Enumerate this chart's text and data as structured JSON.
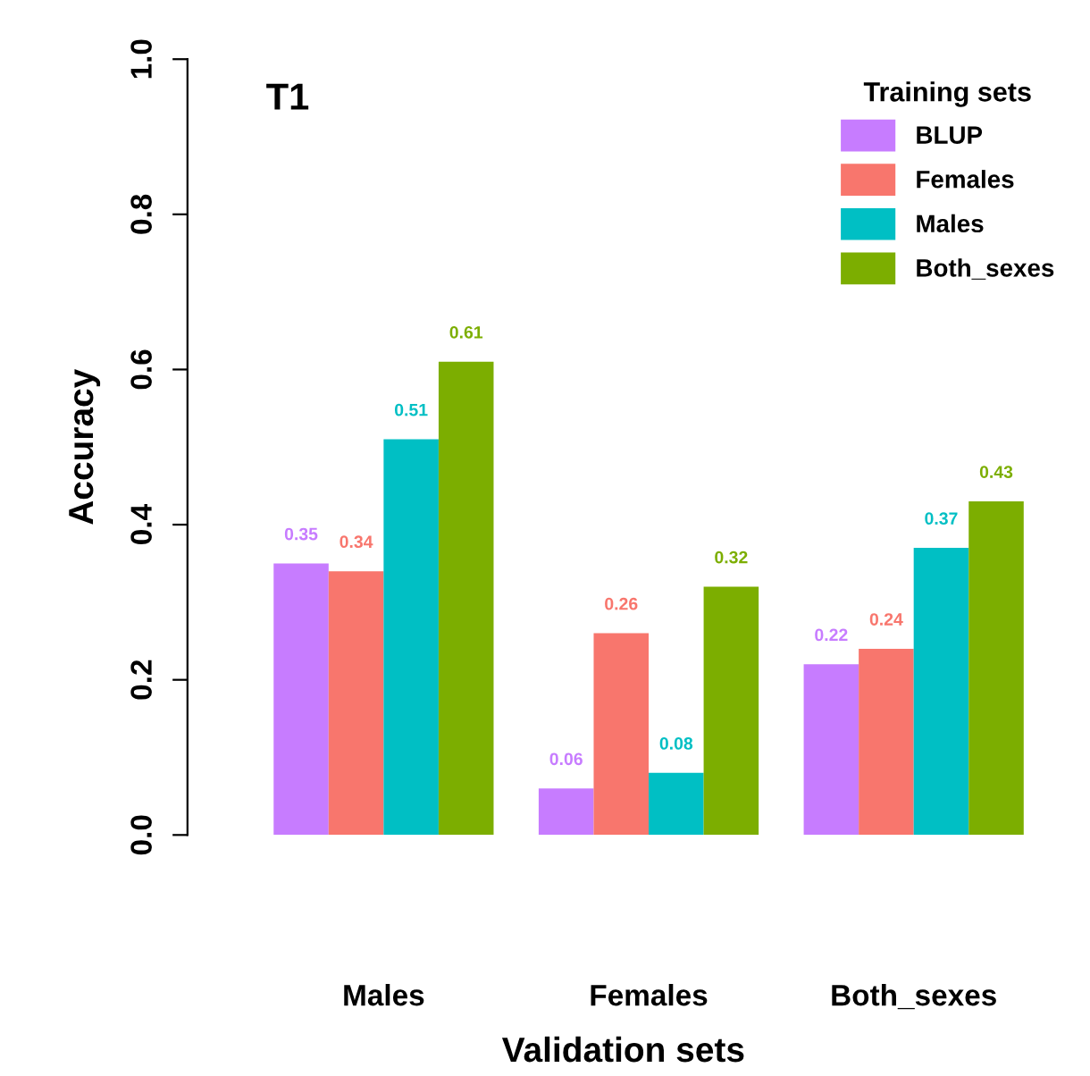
{
  "chart_data": {
    "type": "bar",
    "title": "T1",
    "xlabel": "Validation sets",
    "ylabel": "Accuracy",
    "legend_title": "Training sets",
    "categories": [
      "Males",
      "Females",
      "Both_sexes"
    ],
    "series": [
      {
        "name": "BLUP",
        "color": "#c77cff",
        "values": [
          0.35,
          0.06,
          0.22
        ]
      },
      {
        "name": "Females",
        "color": "#f8766d",
        "values": [
          0.34,
          0.26,
          0.24
        ]
      },
      {
        "name": "Males",
        "color": "#00bfc4",
        "values": [
          0.51,
          0.08,
          0.37
        ]
      },
      {
        "name": "Both_sexes",
        "color": "#7cae00",
        "values": [
          0.61,
          0.32,
          0.43
        ]
      }
    ],
    "ylim": [
      0,
      1
    ],
    "yticks": [
      {
        "value": 0,
        "label": "0.0"
      },
      0.2,
      0.4,
      0.6,
      0.8,
      {
        "value": 1,
        "label": "1.0"
      }
    ],
    "data_labels": true,
    "grid": false,
    "legend": "top right"
  }
}
